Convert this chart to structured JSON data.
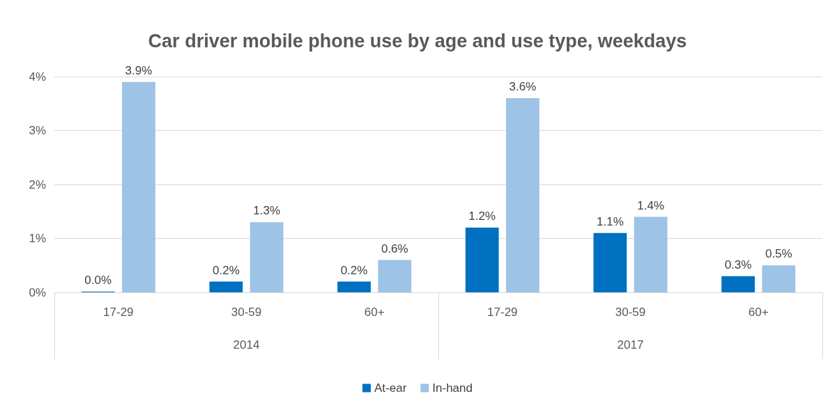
{
  "chart_data": {
    "type": "bar",
    "title": "Car driver mobile phone use by age and use type, weekdays",
    "categories": [
      "17-29",
      "30-59",
      "60+",
      "17-29",
      "30-59",
      "60+"
    ],
    "series": [
      {
        "name": "At-ear",
        "color": "#0070c0",
        "values": [
          0.0,
          0.2,
          0.2,
          1.2,
          1.1,
          0.3
        ],
        "value_labels": [
          "0.0%",
          "0.2%",
          "0.2%",
          "1.2%",
          "1.1%",
          "0.3%"
        ]
      },
      {
        "name": "In-hand",
        "color": "#9dc3e6",
        "values": [
          3.9,
          1.3,
          0.6,
          3.6,
          1.4,
          0.5
        ],
        "value_labels": [
          "3.9%",
          "1.3%",
          "0.6%",
          "3.6%",
          "1.4%",
          "0.5%"
        ]
      }
    ],
    "ylim": [
      0,
      4
    ],
    "yticks": [
      {
        "value": 0,
        "label": "0%"
      },
      {
        "value": 1,
        "label": "1%"
      },
      {
        "value": 2,
        "label": "2%"
      },
      {
        "value": 3,
        "label": "3%"
      },
      {
        "value": 4,
        "label": "4%"
      }
    ],
    "annotations": [
      "2014",
      "2017"
    ],
    "grid": "y",
    "legend": "bottom"
  }
}
